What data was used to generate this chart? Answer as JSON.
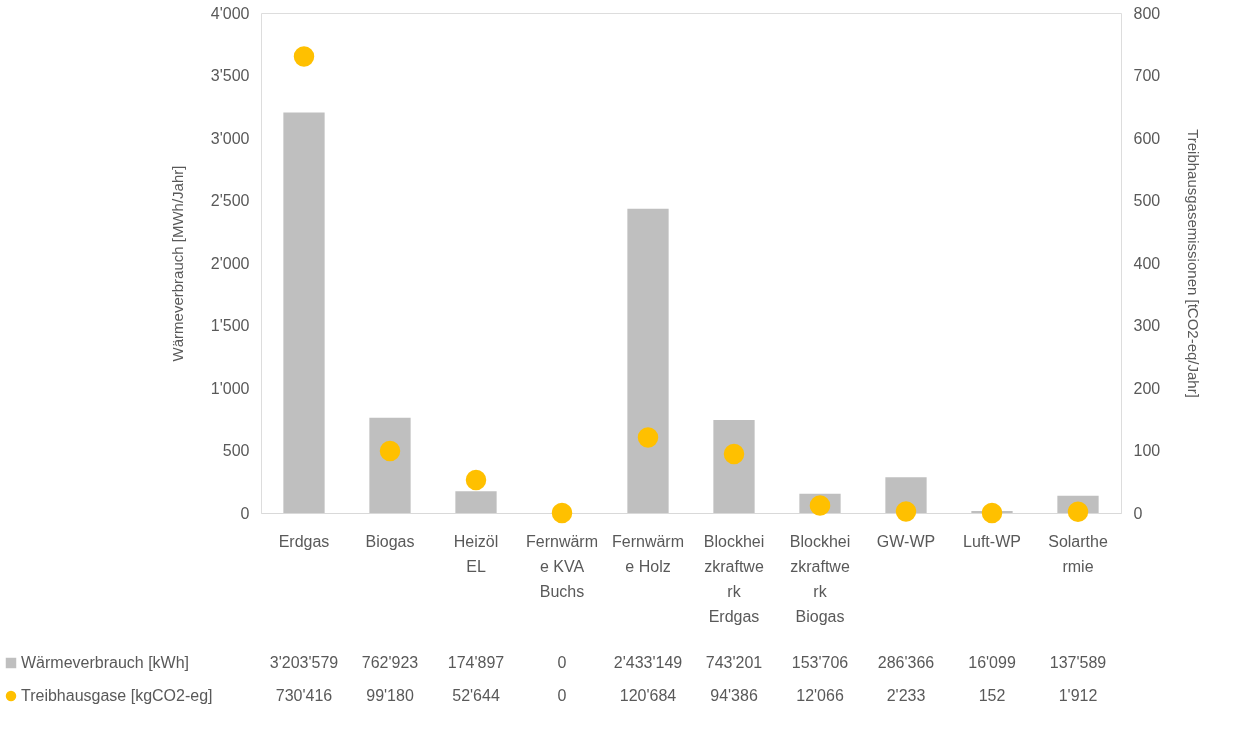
{
  "chart_data": {
    "type": "bar",
    "ylabel": "Wärmeverbrauch [MWh/Jahr]",
    "y2label": "Treibhausgasemissionen [tCO2-eq/Jahr]",
    "categories": [
      "Erdgas",
      "Biogas",
      "Heizöl EL",
      "Fernwärme KVA Buchs",
      "Fernwärme Holz",
      "Blockheizkraftwerk Erdgas",
      "Blockheizkraftwerk Biogas",
      "GW-WP",
      "Luft-WP",
      "Solarthermie"
    ],
    "series": [
      {
        "name": "Wärmeverbrauch [kWh]",
        "color": "#bfbfbf",
        "values": [
          3203.579,
          762.923,
          174.897,
          0,
          2433.149,
          743.201,
          153.706,
          286.366,
          16.099,
          137.589
        ]
      },
      {
        "name": "Treibhausgase [kgCO2-eg]",
        "type": "scatter",
        "axis": "y2",
        "marker": "circle",
        "color": "#ffc000",
        "values": [
          730.416,
          99.18,
          52.644,
          0,
          120.684,
          94.386,
          12.066,
          2.233,
          0.152,
          1.912
        ]
      }
    ],
    "annotations": [
      "3'203'579",
      "762'923",
      "174'897",
      "0",
      "2'433'149",
      "743'201",
      "153'706",
      "286'366",
      "16'099",
      "137'589",
      "730'416",
      "99'180",
      "52'644",
      "0",
      "120'684",
      "94'386",
      "12'066",
      "2'233",
      "152",
      "1'912"
    ],
    "ylim": [
      0,
      4000
    ],
    "yticks": [
      0,
      500,
      {
        "value": 1000,
        "label": "1'000"
      },
      {
        "value": 1500,
        "label": "1'500"
      },
      {
        "value": 2000,
        "label": "2'000"
      },
      {
        "value": 2500,
        "label": "2'500"
      },
      {
        "value": 3000,
        "label": "3'000"
      },
      {
        "value": 3500,
        "label": "3'500"
      },
      {
        "value": 4000,
        "label": "4'000"
      }
    ],
    "y2lim": [
      0,
      800
    ],
    "y2ticks": [
      0,
      100,
      200,
      300,
      400,
      500,
      600,
      700,
      800
    ],
    "grid": false,
    "legend": "bottom"
  }
}
